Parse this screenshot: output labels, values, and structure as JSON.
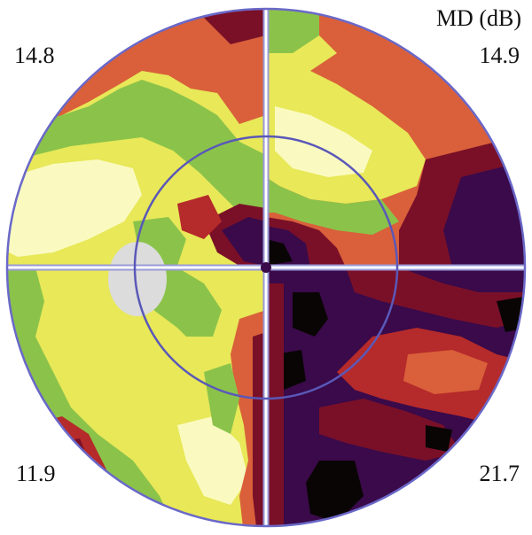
{
  "header": {
    "md_label": "MD (dB)"
  },
  "quadrants": {
    "top_left": "14.8",
    "top_right": "14.9",
    "bottom_left": "11.9",
    "bottom_right": "21.7"
  },
  "colors": {
    "level_1_black": "#0a0505",
    "level_2_purple": "#3a0a4a",
    "level_3_maroon": "#7a1028",
    "level_4_red": "#b52a2a",
    "level_5_orange": "#d9603a",
    "level_6_green": "#8bc34a",
    "level_7_yellow": "#e8e858",
    "level_8_pale_yellow": "#fafac0",
    "blind_spot": "#dcdcdc",
    "axis_line": "#9a9ad8",
    "ring_line": "#5a58b8"
  }
}
